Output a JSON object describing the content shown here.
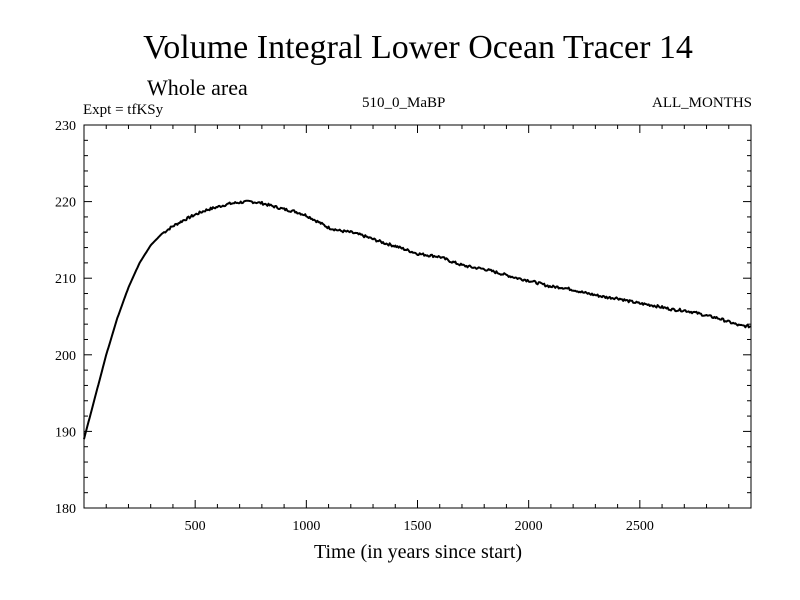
{
  "chart_data": {
    "type": "line",
    "title": "Volume Integral Lower Ocean Tracer 14",
    "subtitle": "Whole area",
    "experiment_label": "Expt = tfKSy",
    "run_label": "510_0_MaBP",
    "months_label": "ALL_MONTHS",
    "xlabel": "Time (in years since start)",
    "ylabel": "",
    "xlim": [
      0,
      3000
    ],
    "ylim": [
      180,
      230
    ],
    "x_ticks": [
      500,
      1000,
      1500,
      2000,
      2500
    ],
    "y_ticks": [
      180,
      190,
      200,
      210,
      220,
      230
    ],
    "series": [
      {
        "name": "tracer14",
        "color": "#000000",
        "x": [
          0,
          50,
          100,
          150,
          200,
          250,
          300,
          350,
          400,
          450,
          500,
          550,
          600,
          650,
          700,
          750,
          800,
          850,
          900,
          950,
          1000,
          1050,
          1100,
          1150,
          1200,
          1250,
          1300,
          1350,
          1400,
          1450,
          1500,
          1550,
          1600,
          1650,
          1700,
          1750,
          1800,
          1850,
          1900,
          1950,
          2000,
          2050,
          2100,
          2150,
          2200,
          2250,
          2300,
          2350,
          2400,
          2450,
          2500,
          2550,
          2600,
          2650,
          2700,
          2750,
          2800,
          2850,
          2900,
          2950,
          3000
        ],
        "values": [
          189.0,
          194.5,
          200.0,
          204.8,
          208.8,
          212.0,
          214.3,
          215.8,
          216.8,
          217.6,
          218.3,
          218.9,
          219.3,
          219.7,
          219.9,
          220.0,
          219.8,
          219.4,
          219.0,
          218.7,
          218.2,
          217.4,
          216.6,
          216.2,
          216.0,
          215.6,
          215.1,
          214.6,
          214.2,
          213.7,
          213.2,
          213.0,
          212.8,
          212.2,
          211.7,
          211.4,
          211.2,
          210.8,
          210.4,
          210.0,
          209.7,
          209.3,
          208.9,
          208.8,
          208.5,
          208.1,
          207.8,
          207.5,
          207.4,
          207.0,
          206.7,
          206.5,
          206.2,
          205.9,
          205.8,
          205.5,
          205.1,
          204.8,
          204.3,
          203.8,
          203.7
        ]
      }
    ]
  }
}
